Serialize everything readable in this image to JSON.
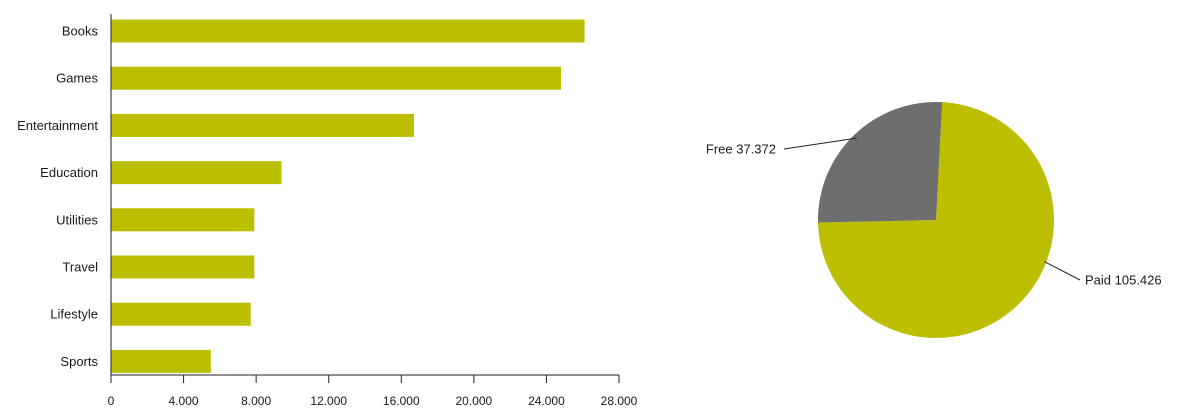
{
  "chart_data": [
    {
      "type": "bar",
      "orientation": "horizontal",
      "title": "",
      "xlabel": "",
      "ylabel": "",
      "categories": [
        "Books",
        "Games",
        "Entertainment",
        "Education",
        "Utilities",
        "Travel",
        "Lifestyle",
        "Sports"
      ],
      "values": [
        26100,
        24800,
        16700,
        9400,
        7900,
        7900,
        7700,
        5500
      ],
      "xlim": [
        0,
        28000
      ],
      "ticks": [
        0,
        4000,
        8000,
        12000,
        16000,
        20000,
        24000,
        28000
      ],
      "tick_labels": [
        "0",
        "4.000",
        "8.000",
        "12.000",
        "16.000",
        "20.000",
        "24.000",
        "28.000"
      ],
      "grid": false,
      "color": "#bcbe00"
    },
    {
      "type": "pie",
      "title": "",
      "slices": [
        {
          "label": "Free",
          "value_label": "37.372",
          "value": 37372,
          "color": "#6e6e6e"
        },
        {
          "label": "Paid",
          "value_label": "105.426",
          "value": 105426,
          "color": "#bcbe00"
        }
      ]
    }
  ]
}
